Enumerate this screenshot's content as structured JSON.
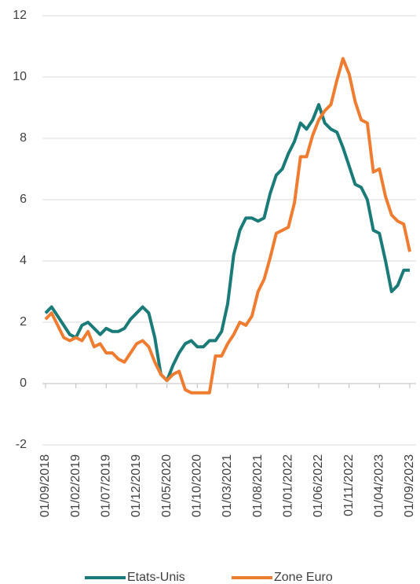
{
  "chart_data": {
    "type": "line",
    "categories": [
      "01/09/2018",
      null,
      null,
      null,
      null,
      "01/02/2019",
      null,
      null,
      null,
      null,
      "01/07/2019",
      null,
      null,
      null,
      null,
      "01/12/2019",
      null,
      null,
      null,
      null,
      "01/05/2020",
      null,
      null,
      null,
      null,
      "01/10/2020",
      null,
      null,
      null,
      null,
      "01/03/2021",
      null,
      null,
      null,
      null,
      "01/08/2021",
      null,
      null,
      null,
      null,
      "01/01/2022",
      null,
      null,
      null,
      null,
      "01/06/2022",
      null,
      null,
      null,
      null,
      "01/11/2022",
      null,
      null,
      null,
      null,
      "01/04/2023",
      null,
      null,
      null,
      null,
      "01/09/2023"
    ],
    "series": [
      {
        "name": "Etats-Unis",
        "color": "#1b7b78",
        "values": [
          2.3,
          2.5,
          2.2,
          1.9,
          1.6,
          1.5,
          1.9,
          2.0,
          1.8,
          1.6,
          1.8,
          1.7,
          1.7,
          1.8,
          2.1,
          2.3,
          2.5,
          2.3,
          1.5,
          0.3,
          0.1,
          0.6,
          1.0,
          1.3,
          1.4,
          1.2,
          1.2,
          1.4,
          1.4,
          1.7,
          2.6,
          4.2,
          5.0,
          5.4,
          5.4,
          5.3,
          5.4,
          6.2,
          6.8,
          7.0,
          7.5,
          7.9,
          8.5,
          8.3,
          8.6,
          9.1,
          8.5,
          8.3,
          8.2,
          7.7,
          7.1,
          6.5,
          6.4,
          6.0,
          5.0,
          4.9,
          4.0,
          3.0,
          3.2,
          3.7,
          3.7
        ]
      },
      {
        "name": "Zone Euro",
        "color": "#ef7d31",
        "values": [
          2.1,
          2.3,
          1.9,
          1.5,
          1.4,
          1.5,
          1.4,
          1.7,
          1.2,
          1.3,
          1.0,
          1.0,
          0.8,
          0.7,
          1.0,
          1.3,
          1.4,
          1.2,
          0.7,
          0.3,
          0.1,
          0.3,
          0.4,
          -0.2,
          -0.3,
          -0.3,
          -0.3,
          -0.3,
          0.9,
          0.9,
          1.3,
          1.6,
          2.0,
          1.9,
          2.2,
          3.0,
          3.4,
          4.1,
          4.9,
          5.0,
          5.1,
          5.9,
          7.4,
          7.4,
          8.1,
          8.6,
          8.9,
          9.1,
          9.9,
          10.6,
          10.1,
          9.2,
          8.6,
          8.5,
          6.9,
          7.0,
          6.1,
          5.5,
          5.3,
          5.2,
          4.3
        ]
      }
    ],
    "ylim": [
      -2,
      12
    ],
    "yticks": [
      -2,
      0,
      2,
      4,
      6,
      8,
      10,
      12
    ],
    "grid": true,
    "legend": "bottom"
  }
}
